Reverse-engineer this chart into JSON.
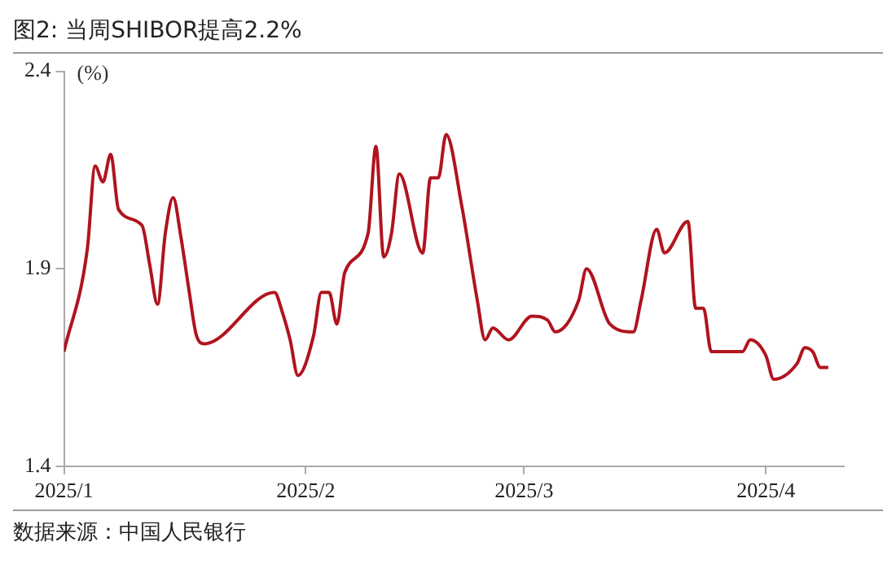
{
  "chart_data": {
    "type": "line",
    "title": "图2:  当周SHIBOR提高2.2%",
    "ylabel": "(%)",
    "annotations": [
      "数据来源：中国人民银行"
    ],
    "x": [
      "2025-01-01",
      "2025-01-04",
      "2025-01-05",
      "2025-01-06",
      "2025-01-07",
      "2025-01-08",
      "2025-01-11",
      "2025-01-12",
      "2025-01-13",
      "2025-01-14",
      "2025-01-15",
      "2025-01-16",
      "2025-01-17",
      "2025-01-18",
      "2025-01-19",
      "2025-01-28",
      "2025-01-29",
      "2025-01-30",
      "2025-01-31",
      "2025-02-02",
      "2025-02-03",
      "2025-02-04",
      "2025-02-05",
      "2025-02-06",
      "2025-02-09",
      "2025-02-10",
      "2025-02-11",
      "2025-02-12",
      "2025-02-13",
      "2025-02-16",
      "2025-02-17",
      "2025-02-18",
      "2025-02-19",
      "2025-02-21",
      "2025-02-23",
      "2025-02-24",
      "2025-02-25",
      "2025-02-27",
      "2025-03-02",
      "2025-03-04",
      "2025-03-05",
      "2025-03-08",
      "2025-03-09",
      "2025-03-12",
      "2025-03-15",
      "2025-03-16",
      "2025-03-18",
      "2025-03-19",
      "2025-03-22",
      "2025-03-23",
      "2025-03-24",
      "2025-03-25",
      "2025-03-29",
      "2025-03-30",
      "2025-04-01",
      "2025-04-02",
      "2025-04-05",
      "2025-04-06",
      "2025-04-07",
      "2025-04-08",
      "2025-04-09"
    ],
    "series": [
      {
        "color": "#b0141e",
        "values": [
          1.69,
          1.95,
          2.16,
          2.12,
          2.19,
          2.05,
          2.01,
          1.91,
          1.81,
          1.99,
          2.08,
          1.98,
          1.85,
          1.73,
          1.71,
          1.84,
          1.79,
          1.72,
          1.63,
          1.73,
          1.84,
          1.84,
          1.76,
          1.89,
          1.99,
          2.21,
          1.93,
          1.99,
          2.14,
          1.94,
          2.13,
          2.13,
          2.24,
          2.06,
          1.82,
          1.72,
          1.75,
          1.72,
          1.78,
          1.77,
          1.74,
          1.82,
          1.9,
          1.76,
          1.74,
          1.82,
          2.0,
          1.94,
          2.02,
          1.8,
          1.8,
          1.69,
          1.69,
          1.72,
          1.68,
          1.62,
          1.66,
          1.7,
          1.69,
          1.65,
          1.65
        ]
      }
    ],
    "xlim": [
      "2025-01-01",
      "2025-04-11"
    ],
    "xticks": [
      {
        "value": "2025-01-01",
        "label": "2025/1"
      },
      {
        "value": "2025-02-01",
        "label": "2025/2"
      },
      {
        "value": "2025-03-01",
        "label": "2025/3"
      },
      {
        "value": "2025-04-01",
        "label": "2025/4"
      }
    ],
    "ylim": [
      1.4,
      2.4
    ],
    "yticks": [
      1.4,
      1.9,
      2.4
    ],
    "grid": false,
    "legend": false,
    "marker": "none",
    "line_style": "solid"
  }
}
